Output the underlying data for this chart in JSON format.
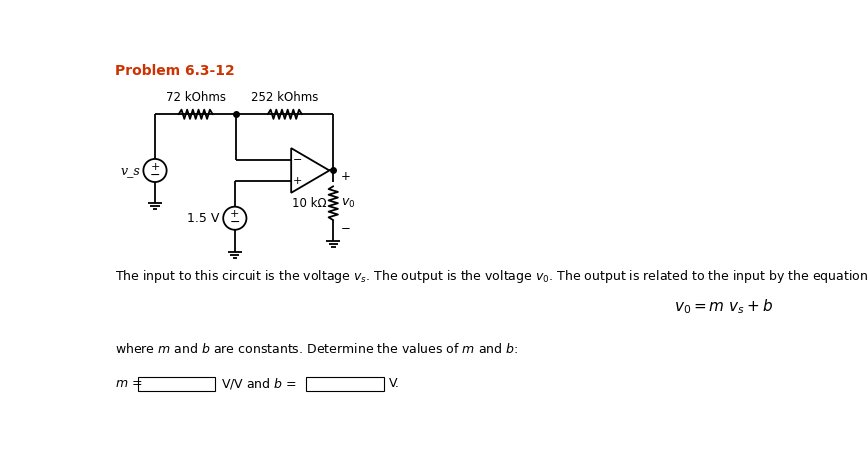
{
  "title": "Problem 6.3-12",
  "title_color": "#cc3300",
  "background_color": "#ffffff",
  "text_line1": "The input to this circuit is the voltage v_s. The output is the voltage v_o. The output is related to the input by the equation",
  "equation_italic": "v_0 = m v_s + b",
  "text_line2": "where m and b are constants. Determine the values of m and b:",
  "r1_label": "72 kOhms",
  "r2_label": "252 kOhms",
  "r3_label": "10 kΩ",
  "vs_label": "v_s",
  "vdc_label": "1.5 V",
  "vo_label": "v_0"
}
